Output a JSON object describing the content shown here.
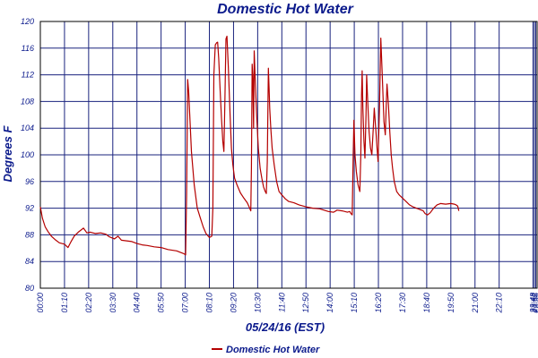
{
  "chart_data": {
    "type": "line",
    "title": "Domestic Hot Water",
    "xlabel": "05/24/16 (EST)",
    "ylabel": "Degrees F",
    "ylim": [
      80,
      120
    ],
    "yticks": [
      80,
      84,
      88,
      92,
      96,
      100,
      104,
      108,
      112,
      116,
      120
    ],
    "xlim": [
      0,
      1440
    ],
    "xticks": [
      {
        "minutes": 0,
        "label": "00:00"
      },
      {
        "minutes": 70,
        "label": "01:10"
      },
      {
        "minutes": 140,
        "label": "02:20"
      },
      {
        "minutes": 210,
        "label": "03:30"
      },
      {
        "minutes": 280,
        "label": "04:40"
      },
      {
        "minutes": 350,
        "label": "05:50"
      },
      {
        "minutes": 420,
        "label": "07:00"
      },
      {
        "minutes": 490,
        "label": "08:10"
      },
      {
        "minutes": 560,
        "label": "09:20"
      },
      {
        "minutes": 630,
        "label": "10:30"
      },
      {
        "minutes": 700,
        "label": "11:40"
      },
      {
        "minutes": 770,
        "label": "12:50"
      },
      {
        "minutes": 840,
        "label": "14:00"
      },
      {
        "minutes": 910,
        "label": "15:10"
      },
      {
        "minutes": 980,
        "label": "16:20"
      },
      {
        "minutes": 1050,
        "label": "17:30"
      },
      {
        "minutes": 1120,
        "label": "18:40"
      },
      {
        "minutes": 1190,
        "label": "19:50"
      },
      {
        "minutes": 1260,
        "label": "21:00"
      },
      {
        "minutes": 1330,
        "label": "22:10"
      },
      {
        "minutes": 1428,
        "label": "23:48"
      },
      {
        "minutes": 1432,
        "label": "23:52"
      },
      {
        "minutes": 1436,
        "label": "23:56"
      }
    ],
    "grid": true,
    "legend_position": "bottom-left",
    "series": [
      {
        "name": "Domestic Hot Water",
        "color": "#b40000",
        "points": [
          [
            0,
            92.2
          ],
          [
            6,
            90.5
          ],
          [
            14,
            89.2
          ],
          [
            22,
            88.5
          ],
          [
            32,
            87.8
          ],
          [
            45,
            87.2
          ],
          [
            55,
            86.8
          ],
          [
            70,
            86.6
          ],
          [
            80,
            86.1
          ],
          [
            88,
            86.9
          ],
          [
            98,
            87.8
          ],
          [
            110,
            88.4
          ],
          [
            125,
            89.0
          ],
          [
            135,
            88.3
          ],
          [
            145,
            88.4
          ],
          [
            160,
            88.2
          ],
          [
            175,
            88.3
          ],
          [
            190,
            88.1
          ],
          [
            200,
            87.7
          ],
          [
            215,
            87.4
          ],
          [
            225,
            87.8
          ],
          [
            235,
            87.2
          ],
          [
            250,
            87.1
          ],
          [
            265,
            87.0
          ],
          [
            280,
            86.7
          ],
          [
            295,
            86.5
          ],
          [
            310,
            86.4
          ],
          [
            330,
            86.2
          ],
          [
            350,
            86.1
          ],
          [
            370,
            85.8
          ],
          [
            395,
            85.6
          ],
          [
            405,
            85.4
          ],
          [
            415,
            85.2
          ],
          [
            421,
            85.0
          ],
          [
            424,
            94.0
          ],
          [
            427,
            111.3
          ],
          [
            430,
            109.5
          ],
          [
            438,
            100.5
          ],
          [
            446,
            95.5
          ],
          [
            455,
            92.0
          ],
          [
            464,
            90.5
          ],
          [
            472,
            89.2
          ],
          [
            480,
            88.2
          ],
          [
            490,
            87.6
          ],
          [
            497,
            87.8
          ],
          [
            500,
            92.0
          ],
          [
            503,
            112.0
          ],
          [
            507,
            116.5
          ],
          [
            511,
            116.8
          ],
          [
            514,
            116.9
          ],
          [
            517,
            114.5
          ],
          [
            521,
            110.0
          ],
          [
            525,
            105.5
          ],
          [
            529,
            102.0
          ],
          [
            532,
            100.5
          ],
          [
            535,
            108.0
          ],
          [
            538,
            117.4
          ],
          [
            541,
            117.8
          ],
          [
            545,
            113.0
          ],
          [
            550,
            106.0
          ],
          [
            554,
            101.0
          ],
          [
            558,
            98.5
          ],
          [
            563,
            96.5
          ],
          [
            570,
            95.5
          ],
          [
            580,
            94.3
          ],
          [
            590,
            93.5
          ],
          [
            600,
            92.8
          ],
          [
            607,
            92.0
          ],
          [
            610,
            91.6
          ],
          [
            612,
            98.0
          ],
          [
            614,
            113.6
          ],
          [
            616,
            111.5
          ],
          [
            618,
            104.0
          ],
          [
            620,
            115.6
          ],
          [
            623,
            111.0
          ],
          [
            627,
            106.0
          ],
          [
            632,
            101.0
          ],
          [
            637,
            98.0
          ],
          [
            642,
            96.5
          ],
          [
            647,
            95.2
          ],
          [
            652,
            94.5
          ],
          [
            655,
            94.2
          ],
          [
            658,
            99.0
          ],
          [
            661,
            113.0
          ],
          [
            663,
            110.0
          ],
          [
            665,
            107.0
          ],
          [
            668,
            104.0
          ],
          [
            672,
            101.0
          ],
          [
            678,
            98.5
          ],
          [
            685,
            96.0
          ],
          [
            692,
            94.5
          ],
          [
            700,
            94.0
          ],
          [
            710,
            93.4
          ],
          [
            720,
            93.0
          ],
          [
            735,
            92.8
          ],
          [
            750,
            92.5
          ],
          [
            770,
            92.2
          ],
          [
            790,
            92.0
          ],
          [
            810,
            91.9
          ],
          [
            835,
            91.5
          ],
          [
            850,
            91.4
          ],
          [
            860,
            91.7
          ],
          [
            875,
            91.6
          ],
          [
            890,
            91.4
          ],
          [
            897,
            91.5
          ],
          [
            900,
            91.2
          ],
          [
            904,
            91.0
          ],
          [
            907,
            100.0
          ],
          [
            909,
            105.2
          ],
          [
            912,
            100.0
          ],
          [
            916,
            97.5
          ],
          [
            921,
            95.5
          ],
          [
            926,
            94.5
          ],
          [
            929,
            100.0
          ],
          [
            931,
            109.0
          ],
          [
            933,
            112.6
          ],
          [
            935,
            107.0
          ],
          [
            938,
            102.0
          ],
          [
            941,
            99.5
          ],
          [
            944,
            106.0
          ],
          [
            946,
            112.0
          ],
          [
            949,
            108.0
          ],
          [
            953,
            103.5
          ],
          [
            957,
            101.0
          ],
          [
            961,
            100.0
          ],
          [
            965,
            104.0
          ],
          [
            968,
            107.0
          ],
          [
            972,
            104.0
          ],
          [
            976,
            101.0
          ],
          [
            979,
            99.0
          ],
          [
            983,
            107.0
          ],
          [
            987,
            117.5
          ],
          [
            991,
            112.0
          ],
          [
            996,
            105.0
          ],
          [
            1000,
            103.0
          ],
          [
            1003,
            108.0
          ],
          [
            1005,
            110.6
          ],
          [
            1009,
            107.5
          ],
          [
            1013,
            103.5
          ],
          [
            1017,
            100.0
          ],
          [
            1021,
            98.0
          ],
          [
            1026,
            96.0
          ],
          [
            1033,
            94.5
          ],
          [
            1040,
            94.0
          ],
          [
            1050,
            93.5
          ],
          [
            1060,
            93.0
          ],
          [
            1070,
            92.5
          ],
          [
            1080,
            92.2
          ],
          [
            1090,
            92.0
          ],
          [
            1100,
            91.8
          ],
          [
            1110,
            91.6
          ],
          [
            1115,
            91.2
          ],
          [
            1122,
            91.0
          ],
          [
            1130,
            91.3
          ],
          [
            1140,
            92.0
          ],
          [
            1150,
            92.5
          ],
          [
            1160,
            92.7
          ],
          [
            1175,
            92.6
          ],
          [
            1190,
            92.7
          ],
          [
            1200,
            92.6
          ],
          [
            1205,
            92.5
          ],
          [
            1210,
            92.3
          ],
          [
            1213,
            91.6
          ]
        ]
      }
    ]
  }
}
